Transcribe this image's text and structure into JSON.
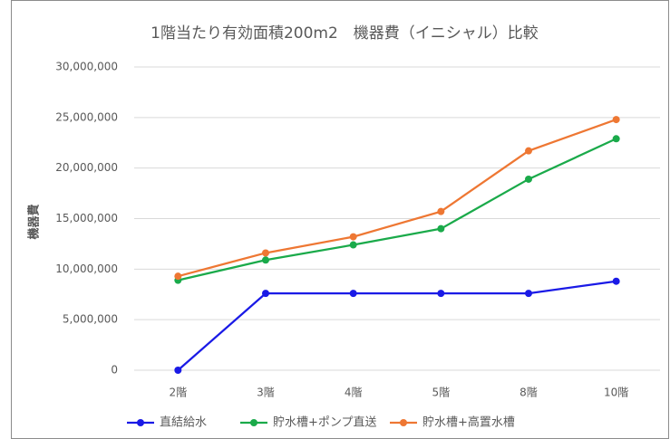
{
  "chart_data": {
    "type": "line",
    "title": "1階当たり有効面積200m2　機器費（イニシャル）比較",
    "y_label": "機器費",
    "categories": [
      "2階",
      "3階",
      "4階",
      "5階",
      "8階",
      "10階"
    ],
    "series": [
      {
        "name": "直結給水",
        "color": "#1a1ae6",
        "values": [
          0,
          7600000,
          7600000,
          7600000,
          7600000,
          8800000
        ]
      },
      {
        "name": "貯水槽+ポンプ直送",
        "color": "#1aaa4a",
        "values": [
          8900000,
          10900000,
          12400000,
          14000000,
          18900000,
          22900000
        ]
      },
      {
        "name": "貯水槽+高置水槽",
        "color": "#ee7733",
        "values": [
          9300000,
          11600000,
          13200000,
          15700000,
          21700000,
          24800000
        ]
      }
    ],
    "ylim": [
      0,
      30000000
    ],
    "yticks": [
      0,
      {
        "value": 5000000,
        "label": "5,000,000"
      },
      {
        "value": 10000000,
        "label": "10,000,000"
      },
      {
        "value": 15000000,
        "label": "15,000,000"
      },
      {
        "value": 20000000,
        "label": "20,000,000"
      },
      {
        "value": 25000000,
        "label": "25,000,000"
      },
      {
        "value": 30000000,
        "label": "30,000,000"
      }
    ],
    "grid": true,
    "legend": "bottom"
  }
}
